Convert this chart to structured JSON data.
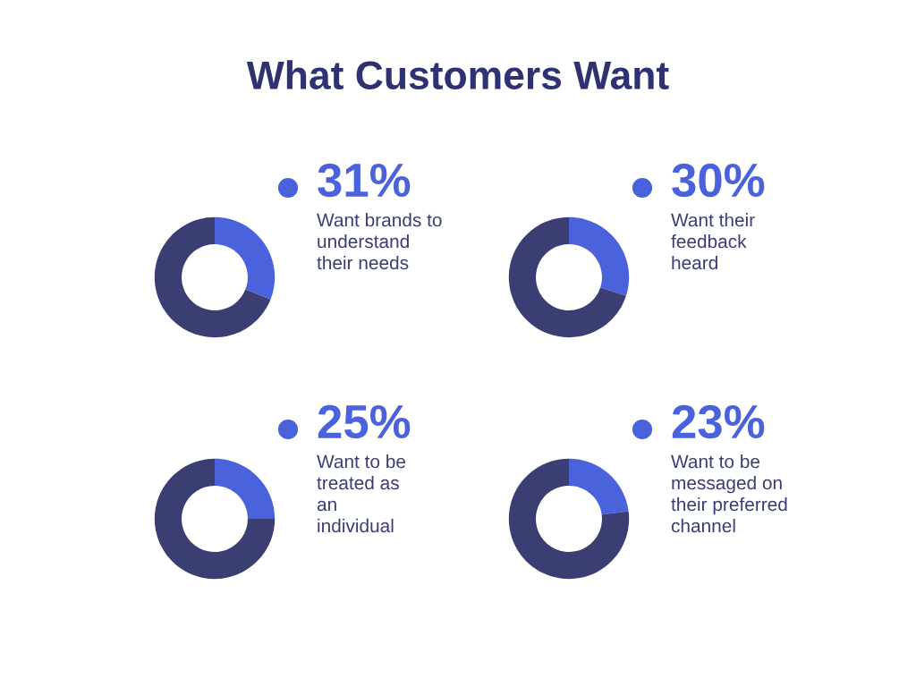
{
  "chart_data": [
    {
      "type": "donut",
      "title": "What Customers Want",
      "categories": [
        "Want brands to\nunderstand\ntheir needs",
        null
      ],
      "values": [
        31,
        69
      ],
      "colors": [
        "#4a62dc",
        "#3a3e73"
      ],
      "value_labels": [
        "31%",
        null
      ]
    },
    {
      "type": "donut",
      "categories": [
        "Want their\nfeedback\nheard",
        null
      ],
      "values": [
        30,
        70
      ],
      "colors": [
        "#4a62dc",
        "#3a3e73"
      ],
      "value_labels": [
        "30%",
        null
      ]
    },
    {
      "type": "donut",
      "categories": [
        "Want to be\ntreated as\nan\nindividual",
        null
      ],
      "values": [
        25,
        75
      ],
      "colors": [
        "#4a62dc",
        "#3a3e73"
      ],
      "value_labels": [
        "25%",
        null
      ]
    },
    {
      "type": "donut",
      "categories": [
        "Want to be\nmessaged on\ntheir preferred\nchannel",
        null
      ],
      "values": [
        23,
        77
      ],
      "colors": [
        "#4a62dc",
        "#3a3e73"
      ],
      "value_labels": [
        "23%",
        null
      ]
    }
  ]
}
